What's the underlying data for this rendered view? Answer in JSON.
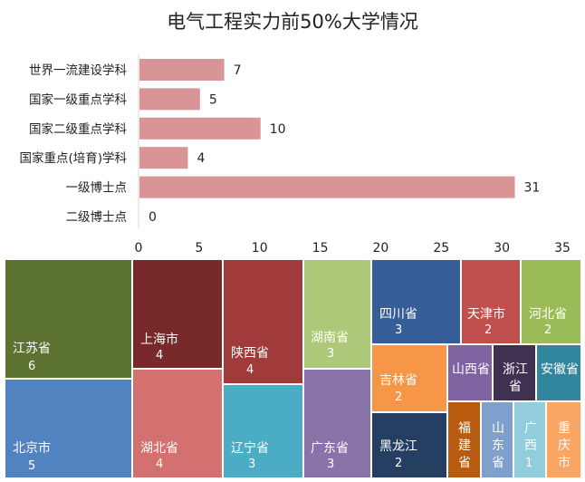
{
  "title": "电气工程实力前50%大学情况",
  "chart_data": [
    {
      "type": "bar",
      "orientation": "horizontal",
      "categories": [
        "世界一流建设学科",
        "国家一级重点学科",
        "国家二级重点学科",
        "国家重点(培育)学科",
        "一级博士点",
        "二级博士点"
      ],
      "values": [
        7,
        5,
        10,
        4,
        31,
        0
      ],
      "xlim": [
        0,
        35
      ],
      "xticks": [
        0,
        5,
        10,
        15,
        20,
        25,
        30,
        35
      ],
      "bar_color": "#d99595",
      "grid": false,
      "legend": "none"
    },
    {
      "type": "treemap",
      "items": [
        {
          "name": "江苏省",
          "value": 6,
          "color": "#5d7331"
        },
        {
          "name": "北京市",
          "value": 5,
          "color": "#5083bf"
        },
        {
          "name": "上海市",
          "value": 4,
          "color": "#78292a"
        },
        {
          "name": "湖北省",
          "value": 4,
          "color": "#d37170"
        },
        {
          "name": "陕西省",
          "value": 4,
          "color": "#a13a3a"
        },
        {
          "name": "辽宁省",
          "value": 3,
          "color": "#4bacc6"
        },
        {
          "name": "湖南省",
          "value": 3,
          "color": "#acc878"
        },
        {
          "name": "广东省",
          "value": 3,
          "color": "#8a73a8"
        },
        {
          "name": "四川省",
          "value": 3,
          "color": "#355e98"
        },
        {
          "name": "天津市",
          "value": 2,
          "color": "#c0504d"
        },
        {
          "name": "河北省",
          "value": 2,
          "color": "#9bbb59"
        },
        {
          "name": "吉林省",
          "value": 2,
          "color": "#f79646"
        },
        {
          "name": "黑龙江",
          "value": 2,
          "color": "#243f61"
        },
        {
          "name": "山西省",
          "value": 1,
          "color": "#8064a2"
        },
        {
          "name": "浙江省",
          "value": 1,
          "color": "#403152"
        },
        {
          "name": "安徽省",
          "value": 1,
          "color": "#31859c"
        },
        {
          "name": "福建省",
          "value": 1,
          "color": "#b85b0f"
        },
        {
          "name": "山东省",
          "value": 1,
          "color": "#7f9fcd"
        },
        {
          "name": "广西",
          "value": 1,
          "color": "#93cddd"
        },
        {
          "name": "重庆市",
          "value": 1,
          "color": "#f9a564"
        }
      ]
    }
  ]
}
